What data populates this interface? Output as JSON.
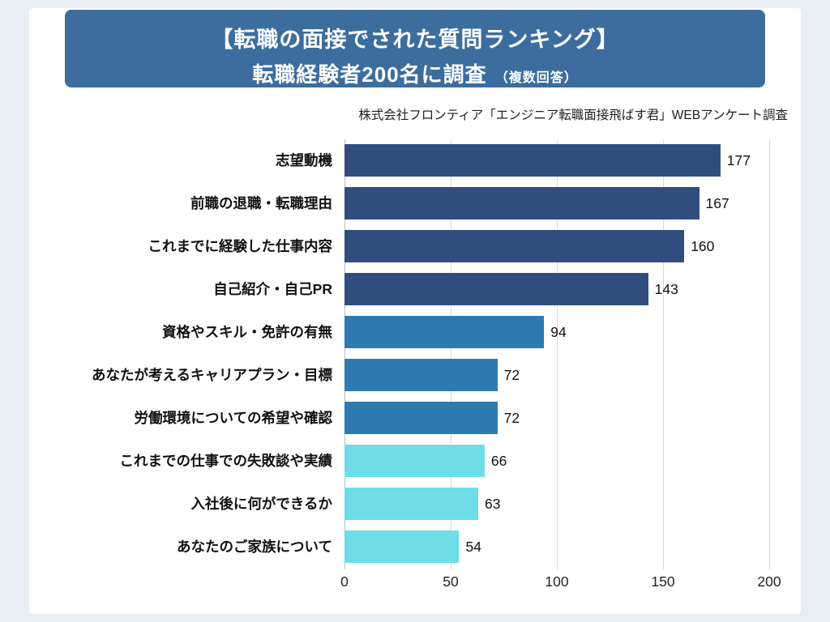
{
  "header": {
    "title_line1": "【転職の面接でされた質問ランキング】",
    "title_line2": "転職経験者200名に調査",
    "title_note": "（複数回答）",
    "banner_color": "#3d6d9e"
  },
  "source": "株式会社フロンティア「エンジニア転職面接飛ばす君」WEBアンケート調査",
  "chart_data": {
    "type": "bar",
    "orientation": "horizontal",
    "title": "【転職の面接でされた質問ランキング】転職経験者200名に調査（複数回答）",
    "categories": [
      "志望動機",
      "前職の退職・転職理由",
      "これまでに経験した仕事内容",
      "自己紹介・自己PR",
      "資格やスキル・免許の有無",
      "あなたが考えるキャリアプラン・目標",
      "労働環境についての希望や確認",
      "これまでの仕事での失敗談や実績",
      "入社後に何ができるか",
      "あなたのご家族について"
    ],
    "values": [
      177,
      167,
      160,
      143,
      94,
      72,
      72,
      66,
      63,
      54
    ],
    "bar_colors": [
      "#2f4e7d",
      "#2f4e7d",
      "#2f4e7d",
      "#2f4e7d",
      "#2e7bb4",
      "#2e7bb4",
      "#2e7bb4",
      "#6edde7",
      "#6edde7",
      "#6edde7"
    ],
    "xlabel": "",
    "ylabel": "",
    "xlim": [
      0,
      200
    ],
    "xticks": [
      0,
      50,
      100,
      150,
      200
    ],
    "grid": true,
    "legend": false,
    "value_labels": true
  },
  "colors": {
    "page_bg": "#e8edf4",
    "card_bg": "#ffffff",
    "grid_color": "#d9d9d9",
    "zero_line_color": "#bdbdbd",
    "text_color": "#111111"
  }
}
